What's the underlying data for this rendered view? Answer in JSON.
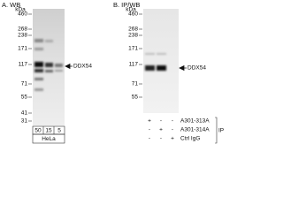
{
  "panel_a": {
    "label": "A. WB",
    "unit": "kDa",
    "markers": [
      "460",
      "268",
      "238",
      "171",
      "117",
      "71",
      "55",
      "41",
      "31"
    ],
    "target": "DDX54",
    "lanes": [
      "50",
      "15",
      "5"
    ],
    "cell_line": "HeLa"
  },
  "panel_b": {
    "label": "B. IP/WB",
    "unit": "kDa",
    "markers": [
      "460",
      "268",
      "238",
      "171",
      "117",
      "71",
      "55"
    ],
    "target": "DDX54",
    "antibodies": [
      {
        "name": "A301-313A",
        "lanes": [
          "+",
          "-",
          "-"
        ]
      },
      {
        "name": "A301-314A",
        "lanes": [
          "-",
          "+",
          "-"
        ]
      },
      {
        "name": "Ctrl IgG",
        "lanes": [
          "-",
          "-",
          "+"
        ]
      }
    ],
    "group": "IP"
  }
}
